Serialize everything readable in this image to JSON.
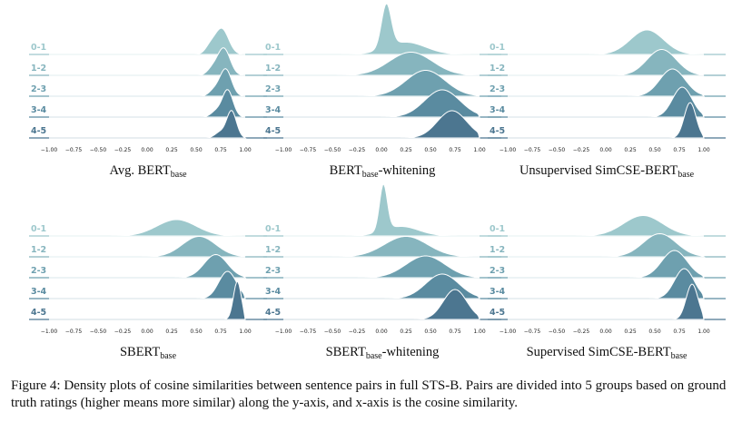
{
  "colors": [
    "#9dc8cc",
    "#86b5be",
    "#6ea0af",
    "#5a8ba0",
    "#4c7690"
  ],
  "chart_data": [
    {
      "type": "ridgeline",
      "title_main": "Avg. BERT",
      "title_sub": "base",
      "title_suffix": "",
      "categories": [
        "0-1",
        "1-2",
        "2-3",
        "3-4",
        "4-5"
      ],
      "xticks": [
        "−1.00",
        "−0.75",
        "−0.50",
        "−0.25",
        "0.00",
        "0.25",
        "0.50",
        "0.75",
        "1.00"
      ],
      "xlim": [
        -1,
        1
      ],
      "series": [
        {
          "peaks": [
            {
              "mu": 0.76,
              "sd": 0.07,
              "h": 0.95
            },
            {
              "mu": 0.64,
              "sd": 0.05,
              "h": 0.25
            }
          ]
        },
        {
          "peaks": [
            {
              "mu": 0.78,
              "sd": 0.065,
              "h": 1.0
            },
            {
              "mu": 0.66,
              "sd": 0.05,
              "h": 0.2
            }
          ]
        },
        {
          "peaks": [
            {
              "mu": 0.8,
              "sd": 0.06,
              "h": 1.0
            },
            {
              "mu": 0.68,
              "sd": 0.05,
              "h": 0.2
            }
          ]
        },
        {
          "peaks": [
            {
              "mu": 0.82,
              "sd": 0.055,
              "h": 1.0
            },
            {
              "mu": 0.7,
              "sd": 0.05,
              "h": 0.2
            }
          ]
        },
        {
          "peaks": [
            {
              "mu": 0.86,
              "sd": 0.05,
              "h": 1.0
            },
            {
              "mu": 0.74,
              "sd": 0.05,
              "h": 0.2
            }
          ]
        }
      ]
    },
    {
      "type": "ridgeline",
      "title_main": "BERT",
      "title_sub": "base",
      "title_suffix": "-whitening",
      "categories": [
        "0-1",
        "1-2",
        "2-3",
        "3-4",
        "4-5"
      ],
      "xticks": [
        "−1.00",
        "−0.75",
        "−0.50",
        "−0.25",
        "0.00",
        "0.25",
        "0.50",
        "0.75",
        "1.00"
      ],
      "xlim": [
        -1,
        1
      ],
      "series": [
        {
          "peaks": [
            {
              "mu": 0.05,
              "sd": 0.05,
              "h": 1.6
            },
            {
              "mu": 0.25,
              "sd": 0.2,
              "h": 0.45
            }
          ]
        },
        {
          "peaks": [
            {
              "mu": 0.3,
              "sd": 0.22,
              "h": 0.85
            }
          ]
        },
        {
          "peaks": [
            {
              "mu": 0.45,
              "sd": 0.2,
              "h": 0.95
            }
          ]
        },
        {
          "peaks": [
            {
              "mu": 0.62,
              "sd": 0.18,
              "h": 1.0
            }
          ]
        },
        {
          "peaks": [
            {
              "mu": 0.72,
              "sd": 0.15,
              "h": 1.0
            }
          ]
        }
      ]
    },
    {
      "type": "ridgeline",
      "title_main": "Unsupervised SimCSE-BERT",
      "title_sub": "base",
      "title_suffix": "",
      "categories": [
        "0-1",
        "1-2",
        "2-3",
        "3-4",
        "4-5"
      ],
      "xticks": [
        "−1.00",
        "−0.75",
        "−0.50",
        "−0.25",
        "0.00",
        "0.25",
        "0.50",
        "0.75",
        "1.00"
      ],
      "xlim": [
        -1,
        1
      ],
      "series": [
        {
          "peaks": [
            {
              "mu": 0.42,
              "sd": 0.17,
              "h": 0.9
            }
          ]
        },
        {
          "peaks": [
            {
              "mu": 0.57,
              "sd": 0.15,
              "h": 0.95
            }
          ]
        },
        {
          "peaks": [
            {
              "mu": 0.68,
              "sd": 0.13,
              "h": 1.0
            }
          ]
        },
        {
          "peaks": [
            {
              "mu": 0.78,
              "sd": 0.1,
              "h": 1.1
            }
          ]
        },
        {
          "peaks": [
            {
              "mu": 0.86,
              "sd": 0.06,
              "h": 1.3
            }
          ]
        }
      ]
    },
    {
      "type": "ridgeline",
      "title_main": "SBERT",
      "title_sub": "base",
      "title_suffix": "",
      "categories": [
        "0-1",
        "1-2",
        "2-3",
        "3-4",
        "4-5"
      ],
      "xticks": [
        "−1.00",
        "−0.75",
        "−0.50",
        "−0.25",
        "0.00",
        "0.25",
        "0.50",
        "0.75",
        "1.00"
      ],
      "xlim": [
        -1,
        1
      ],
      "series": [
        {
          "peaks": [
            {
              "mu": 0.3,
              "sd": 0.2,
              "h": 0.6
            }
          ]
        },
        {
          "peaks": [
            {
              "mu": 0.53,
              "sd": 0.17,
              "h": 0.75
            }
          ]
        },
        {
          "peaks": [
            {
              "mu": 0.7,
              "sd": 0.12,
              "h": 0.85
            }
          ]
        },
        {
          "peaks": [
            {
              "mu": 0.82,
              "sd": 0.09,
              "h": 1.0
            }
          ]
        },
        {
          "peaks": [
            {
              "mu": 0.92,
              "sd": 0.04,
              "h": 1.4
            }
          ]
        }
      ]
    },
    {
      "type": "ridgeline",
      "title_main": "SBERT",
      "title_sub": "base",
      "title_suffix": "-whitening",
      "categories": [
        "0-1",
        "1-2",
        "2-3",
        "3-4",
        "4-5"
      ],
      "xticks": [
        "−1.00",
        "−0.75",
        "−0.50",
        "−0.25",
        "0.00",
        "0.25",
        "0.50",
        "0.75",
        "1.00"
      ],
      "xlim": [
        -1,
        1
      ],
      "series": [
        {
          "peaks": [
            {
              "mu": 0.02,
              "sd": 0.04,
              "h": 1.7
            },
            {
              "mu": 0.2,
              "sd": 0.18,
              "h": 0.35
            }
          ]
        },
        {
          "peaks": [
            {
              "mu": 0.25,
              "sd": 0.22,
              "h": 0.75
            }
          ]
        },
        {
          "peaks": [
            {
              "mu": 0.45,
              "sd": 0.2,
              "h": 0.8
            }
          ]
        },
        {
          "peaks": [
            {
              "mu": 0.62,
              "sd": 0.17,
              "h": 0.9
            }
          ]
        },
        {
          "peaks": [
            {
              "mu": 0.75,
              "sd": 0.12,
              "h": 1.1
            }
          ]
        }
      ]
    },
    {
      "type": "ridgeline",
      "title_main": "Supervised SimCSE-BERT",
      "title_sub": "base",
      "title_suffix": "",
      "categories": [
        "0-1",
        "1-2",
        "2-3",
        "3-4",
        "4-5"
      ],
      "xticks": [
        "−1.00",
        "−0.75",
        "−0.50",
        "−0.25",
        "0.00",
        "0.25",
        "0.50",
        "0.75",
        "1.00"
      ],
      "xlim": [
        -1,
        1
      ],
      "series": [
        {
          "peaks": [
            {
              "mu": 0.38,
              "sd": 0.2,
              "h": 0.75
            }
          ]
        },
        {
          "peaks": [
            {
              "mu": 0.55,
              "sd": 0.17,
              "h": 0.85
            }
          ]
        },
        {
          "peaks": [
            {
              "mu": 0.7,
              "sd": 0.13,
              "h": 1.0
            }
          ]
        },
        {
          "peaks": [
            {
              "mu": 0.8,
              "sd": 0.1,
              "h": 1.1
            }
          ]
        },
        {
          "peaks": [
            {
              "mu": 0.88,
              "sd": 0.06,
              "h": 1.3
            }
          ]
        }
      ]
    }
  ],
  "caption": "Figure 4: Density plots of cosine similarities between sentence pairs in full STS-B. Pairs are divided into 5 groups based on ground truth ratings (higher means more similar) along the y-axis, and x-axis is the cosine similarity."
}
